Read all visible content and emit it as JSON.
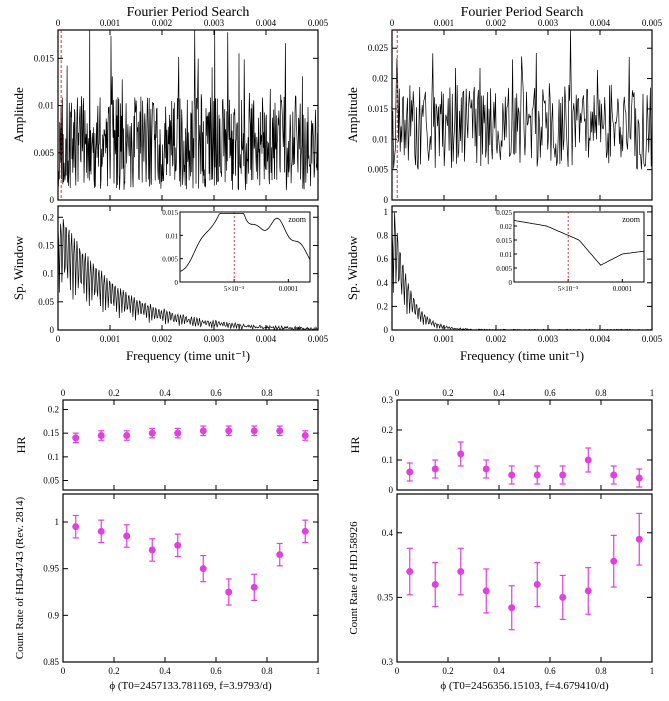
{
  "palette": {
    "axis": "#000000",
    "line": "#000000",
    "marker": "#e040e0",
    "error": "#e040e0",
    "highlight": "#e00000",
    "bg": "#ffffff"
  },
  "left": {
    "fourier": {
      "title": "Fourier Period Search",
      "top_ticks": [
        "0",
        "0.001",
        "0.002",
        "0.003",
        "0.004",
        "0.005"
      ],
      "xlabel": "Frequency (time unit⁻¹)",
      "xticks": [
        "0",
        "0.001",
        "0.002",
        "0.003",
        "0.004",
        "0.005"
      ],
      "amp": {
        "label": "Amplitude",
        "yticks": [
          "0",
          "0.005",
          "0.01",
          "0.015"
        ],
        "ylim": [
          0,
          0.018
        ],
        "series": {
          "seed": 11,
          "n": 600,
          "xmax": 0.005,
          "base": 0.006,
          "noise": 0.005,
          "spikes": 40,
          "spike_amp": 0.011
        }
      },
      "spw": {
        "label": "Sp. Window",
        "yticks": [
          "0",
          "0.05",
          "0.1",
          "0.15",
          "0.2"
        ],
        "ylim": [
          0,
          0.22
        ],
        "series": {
          "seed": 21,
          "n": 400,
          "xmax": 0.005,
          "peak_x": 0.0001,
          "peak_y": 0.2,
          "decay": 900,
          "noise": 0.02
        }
      },
      "inset": {
        "label": "zoom",
        "xticks": [
          "5×10⁻⁵",
          "0.0001"
        ],
        "yticks": [
          "0",
          "0.005",
          "0.01",
          "0.015"
        ],
        "xline": 5e-05,
        "series": {
          "seed": 31,
          "n": 120,
          "xmax": 0.00012,
          "peaks": [
            [
              2e-05,
              0.006
            ],
            [
              3.5e-05,
              0.008
            ],
            [
              5e-05,
              0.017
            ],
            [
              7e-05,
              0.009
            ],
            [
              9e-05,
              0.011
            ],
            [
              0.00011,
              0.006
            ]
          ]
        }
      }
    },
    "phase": {
      "xlabel": "ϕ (T0=2457133.781169, f=3.9793/d)",
      "xticks": [
        "0",
        "0.2",
        "0.4",
        "0.6",
        "0.8",
        "1"
      ],
      "hr": {
        "label": "HR",
        "yticks": [
          "0.05",
          "0.1",
          "0.15",
          "0.2"
        ],
        "ylim": [
          0.03,
          0.22
        ],
        "points": [
          [
            0.05,
            0.14,
            0.01
          ],
          [
            0.15,
            0.145,
            0.01
          ],
          [
            0.25,
            0.145,
            0.01
          ],
          [
            0.35,
            0.15,
            0.01
          ],
          [
            0.45,
            0.15,
            0.01
          ],
          [
            0.55,
            0.155,
            0.01
          ],
          [
            0.65,
            0.155,
            0.01
          ],
          [
            0.75,
            0.155,
            0.01
          ],
          [
            0.85,
            0.155,
            0.01
          ],
          [
            0.95,
            0.145,
            0.01
          ]
        ]
      },
      "cr": {
        "label": "Count Rate of HD44743 (Rev. 2814)",
        "yticks": [
          "0.85",
          "0.9",
          "0.95",
          "1"
        ],
        "ylim": [
          0.85,
          1.03
        ],
        "points": [
          [
            0.05,
            0.995,
            0.012
          ],
          [
            0.15,
            0.99,
            0.012
          ],
          [
            0.25,
            0.985,
            0.012
          ],
          [
            0.35,
            0.97,
            0.012
          ],
          [
            0.45,
            0.975,
            0.012
          ],
          [
            0.55,
            0.95,
            0.014
          ],
          [
            0.65,
            0.925,
            0.014
          ],
          [
            0.75,
            0.93,
            0.014
          ],
          [
            0.85,
            0.965,
            0.012
          ],
          [
            0.95,
            0.99,
            0.012
          ]
        ]
      }
    }
  },
  "right": {
    "fourier": {
      "title": "Fourier Period Search",
      "top_ticks": [
        "0",
        "0.001",
        "0.002",
        "0.003",
        "0.004",
        "0.005"
      ],
      "xlabel": "Frequency (time unit⁻¹)",
      "xticks": [
        "0",
        "0.001",
        "0.002",
        "0.003",
        "0.004",
        "0.005"
      ],
      "amp": {
        "label": "Amplitude",
        "yticks": [
          "0",
          "0.005",
          "0.01",
          "0.015",
          "0.02",
          "0.025"
        ],
        "ylim": [
          0,
          0.028
        ],
        "series": {
          "seed": 41,
          "n": 320,
          "xmax": 0.005,
          "base": 0.012,
          "noise": 0.007,
          "spikes": 18,
          "spike_amp": 0.013,
          "left_peak_x": 0.0001,
          "left_peak_y": 0.026
        }
      },
      "spw": {
        "label": "Sp. Window",
        "yticks": [
          "0",
          "0.2",
          "0.4",
          "0.6",
          "0.8",
          "1"
        ],
        "ylim": [
          0,
          1.05
        ],
        "series": {
          "seed": 51,
          "n": 400,
          "xmax": 0.005,
          "peak_x": 5e-05,
          "peak_y": 1.0,
          "decay": 3500,
          "noise": 0.04
        }
      },
      "inset": {
        "label": "zoom",
        "xticks": [
          "5×10⁻⁵",
          "0.0001"
        ],
        "yticks": [
          "0",
          "0.005",
          "0.01",
          "0.015",
          "0.02",
          "0.025"
        ],
        "xline": 5e-05,
        "series": {
          "seed": 61,
          "n": 100,
          "xmax": 0.00012,
          "curve": [
            [
              0,
              0.022
            ],
            [
              3e-05,
              0.02
            ],
            [
              6e-05,
              0.015
            ],
            [
              8e-05,
              0.006
            ],
            [
              0.0001,
              0.01
            ],
            [
              0.00012,
              0.011
            ]
          ]
        }
      }
    },
    "phase": {
      "xlabel": "ϕ (T0=2456356.15103, f=4.679410/d)",
      "xticks": [
        "0",
        "0.2",
        "0.4",
        "0.6",
        "0.8",
        "1"
      ],
      "hr": {
        "label": "HR",
        "yticks": [
          "0",
          "0.1",
          "0.2",
          "0.3"
        ],
        "ylim": [
          0,
          0.3
        ],
        "points": [
          [
            0.05,
            0.06,
            0.03
          ],
          [
            0.15,
            0.07,
            0.03
          ],
          [
            0.25,
            0.12,
            0.04
          ],
          [
            0.35,
            0.07,
            0.03
          ],
          [
            0.45,
            0.05,
            0.03
          ],
          [
            0.55,
            0.05,
            0.03
          ],
          [
            0.65,
            0.05,
            0.03
          ],
          [
            0.75,
            0.1,
            0.04
          ],
          [
            0.85,
            0.05,
            0.03
          ],
          [
            0.95,
            0.04,
            0.03
          ]
        ]
      },
      "cr": {
        "label": "Count Rate of HD158926",
        "yticks": [
          "0.3",
          "0.35",
          "0.4"
        ],
        "ylim": [
          0.3,
          0.43
        ],
        "points": [
          [
            0.05,
            0.37,
            0.018
          ],
          [
            0.15,
            0.36,
            0.017
          ],
          [
            0.25,
            0.37,
            0.018
          ],
          [
            0.35,
            0.355,
            0.017
          ],
          [
            0.45,
            0.342,
            0.017
          ],
          [
            0.55,
            0.36,
            0.017
          ],
          [
            0.65,
            0.35,
            0.017
          ],
          [
            0.75,
            0.355,
            0.018
          ],
          [
            0.85,
            0.378,
            0.02
          ],
          [
            0.95,
            0.395,
            0.02
          ]
        ]
      }
    }
  }
}
